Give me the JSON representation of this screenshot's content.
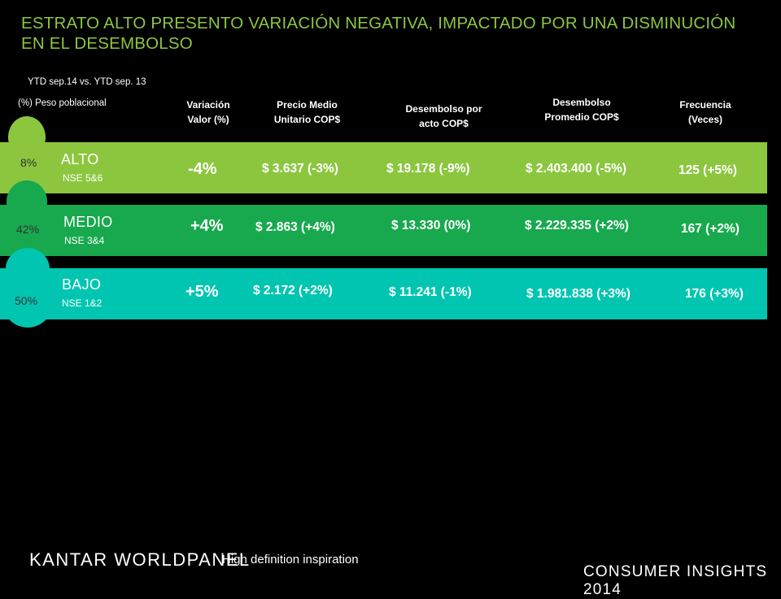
{
  "title": "ESTRATO ALTO  PRESENTO VARIACIÓN NEGATIVA, IMPACTADO POR UNA DISMINUCIÓN EN EL DESEMBOLSO",
  "subtitle": "YTD sep.14 vs. YTD sep. 13",
  "legend": "(%) Peso poblacional",
  "headers": {
    "variacion": "Variación\nValor (%)",
    "precio": "Precio Medio\nUnitario COP$",
    "desembolso_acto": "Desembolso por\nacto COP$",
    "desembolso_prom": "Desembolso\nPromedio COP$",
    "frecuencia": "Frecuencia\n(Veces)"
  },
  "rows": [
    {
      "pct": "8%",
      "name": "ALTO",
      "sub": "NSE 5&6",
      "variacion": "-4%",
      "precio": "$ 3.637 (-3%)",
      "desembolso_acto": "$ 19.178 (-9%)",
      "desembolso_prom": "$ 2.403.400 (-5%)",
      "frecuencia": "125 (+5%)"
    },
    {
      "pct": "42%",
      "name": "MEDIO",
      "sub": "NSE 3&4",
      "variacion": "+4%",
      "precio": "$ 2.863 (+4%)",
      "desembolso_acto": "$ 13.330 (0%)",
      "desembolso_prom": "$ 2.229.335 (+2%)",
      "frecuencia": "167 (+2%)"
    },
    {
      "pct": "50%",
      "name": "BAJO",
      "sub": "NSE 1&2",
      "variacion": "+5%",
      "precio": "$ 2.172 (+2%)",
      "desembolso_acto": "$ 11.241 (-1%)",
      "desembolso_prom": "$ 1.981.838 (+3%)",
      "frecuencia": "176 (+3%)"
    }
  ],
  "colors": {
    "alto": "#8cc63f",
    "medio": "#18a94e",
    "bajo": "#00c5b0"
  },
  "footer": {
    "logo_kantar": "KANTAR ",
    "logo_worldpanel": "WORLDPANEL",
    "tagline": "High definition inspiration",
    "consumer_insights": "CONSUMER INSIGHTS 2014"
  }
}
